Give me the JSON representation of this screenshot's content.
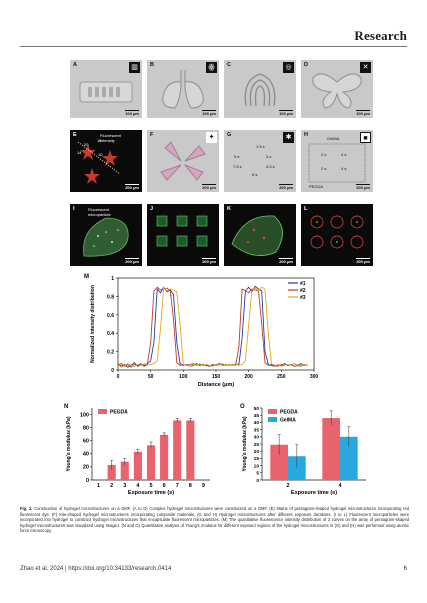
{
  "header": {
    "brand": "Research"
  },
  "panels": {
    "A": {
      "label": "A",
      "scale": "100 μm"
    },
    "B": {
      "label": "B",
      "scale": "100 μm"
    },
    "C": {
      "label": "C",
      "scale": "100 μm"
    },
    "D": {
      "label": "D",
      "scale": "100 μm"
    },
    "E": {
      "label": "E",
      "scale": "200 μm",
      "annotation": "Fluorescent intensity",
      "marks": [
        "20",
        "16",
        "14",
        "10"
      ]
    },
    "F": {
      "label": "F",
      "scale": "200 μm"
    },
    "G": {
      "label": "G",
      "scale": "200 μm",
      "times": [
        "1.5 s",
        "9 s",
        "3 s",
        "7.5 s",
        "4.5 s",
        "6 s"
      ]
    },
    "H": {
      "label": "H",
      "scale": "200 μm",
      "top": "GelMA",
      "bottom": "PEGDA",
      "times": [
        "2 s",
        "4 s",
        "2 s",
        "4 s"
      ]
    },
    "I": {
      "label": "I",
      "scale": "200 μm",
      "annotation": "Fluorescent microparticle"
    },
    "J": {
      "label": "J",
      "scale": "200 μm"
    },
    "K": {
      "label": "K",
      "scale": "200 μm"
    },
    "L": {
      "label": "L",
      "scale": "200 μm"
    }
  },
  "chart_data": [
    {
      "panel": "M",
      "type": "line",
      "xlabel": "Distance (μm)",
      "ylabel": "Normalized intensity distribution",
      "xlim": [
        0,
        300
      ],
      "ylim": [
        0,
        1
      ],
      "xticks": [
        0,
        50,
        100,
        150,
        200,
        250,
        300
      ],
      "yticks": [
        0,
        0.2,
        0.4,
        0.6,
        0.8,
        1
      ],
      "legend_position": "top-right",
      "series": [
        {
          "name": "#1",
          "color": "#1f3e9c",
          "x": [
            0,
            5,
            10,
            15,
            20,
            25,
            30,
            35,
            40,
            45,
            50,
            55,
            60,
            65,
            70,
            75,
            80,
            85,
            90,
            95,
            100,
            105,
            110,
            115,
            120,
            125,
            130,
            135,
            140,
            145,
            150,
            155,
            160,
            165,
            170,
            175,
            180,
            185,
            190,
            195,
            200,
            205,
            210,
            215,
            220,
            225,
            230,
            235,
            240,
            245,
            250,
            255,
            260,
            265,
            270,
            275,
            280,
            285,
            290
          ],
          "y": [
            0.07,
            0.04,
            0.06,
            0.03,
            0.05,
            0.08,
            0.04,
            0.06,
            0.05,
            0.07,
            0.1,
            0.3,
            0.88,
            0.84,
            0.9,
            0.85,
            0.87,
            0.82,
            0.3,
            0.07,
            0.05,
            0.06,
            0.04,
            0.05,
            0.07,
            0.05,
            0.06,
            0.05,
            0.04,
            0.06,
            0.05,
            0.07,
            0.06,
            0.05,
            0.06,
            0.05,
            0.07,
            0.06,
            0.35,
            0.86,
            0.9,
            0.85,
            0.91,
            0.88,
            0.86,
            0.2,
            0.06,
            0.05,
            0.04,
            0.06,
            0.05,
            0.07,
            0.05,
            0.06,
            0.04,
            0.05,
            0.07,
            0.05,
            0.06
          ]
        },
        {
          "name": "#2",
          "color": "#c0392b",
          "x": [
            0,
            5,
            10,
            15,
            20,
            25,
            30,
            35,
            40,
            45,
            50,
            55,
            60,
            65,
            70,
            75,
            80,
            85,
            90,
            95,
            100,
            105,
            110,
            115,
            120,
            125,
            130,
            135,
            140,
            145,
            150,
            155,
            160,
            165,
            170,
            175,
            180,
            185,
            190,
            195,
            200,
            205,
            210,
            215,
            220,
            225,
            230,
            235,
            240,
            245,
            250,
            255,
            260,
            265,
            270,
            275,
            280,
            285,
            290
          ],
          "y": [
            0.05,
            0.07,
            0.04,
            0.06,
            0.03,
            0.06,
            0.05,
            0.07,
            0.04,
            0.06,
            0.3,
            0.86,
            0.9,
            0.87,
            0.88,
            0.89,
            0.86,
            0.55,
            0.08,
            0.05,
            0.06,
            0.05,
            0.06,
            0.07,
            0.05,
            0.06,
            0.05,
            0.06,
            0.04,
            0.05,
            0.06,
            0.07,
            0.05,
            0.06,
            0.05,
            0.06,
            0.05,
            0.25,
            0.88,
            0.86,
            0.84,
            0.88,
            0.87,
            0.86,
            0.5,
            0.08,
            0.05,
            0.06,
            0.05,
            0.04,
            0.06,
            0.05,
            0.06,
            0.05,
            0.07,
            0.05,
            0.04,
            0.06,
            0.05
          ]
        },
        {
          "name": "#3",
          "color": "#e0a81a",
          "x": [
            0,
            5,
            10,
            15,
            20,
            25,
            30,
            35,
            40,
            45,
            50,
            55,
            60,
            65,
            70,
            75,
            80,
            85,
            90,
            95,
            100,
            105,
            110,
            115,
            120,
            125,
            130,
            135,
            140,
            145,
            150,
            155,
            160,
            165,
            170,
            175,
            180,
            185,
            190,
            195,
            200,
            205,
            210,
            215,
            220,
            225,
            230,
            235,
            240,
            245,
            250,
            255,
            260,
            265,
            270,
            275,
            280,
            285,
            290
          ],
          "y": [
            0.06,
            0.03,
            0.05,
            0.07,
            0.05,
            0.04,
            0.06,
            0.05,
            0.07,
            0.05,
            0.06,
            0.07,
            0.1,
            0.45,
            0.9,
            0.86,
            0.88,
            0.87,
            0.85,
            0.5,
            0.06,
            0.05,
            0.04,
            0.06,
            0.05,
            0.07,
            0.05,
            0.06,
            0.05,
            0.04,
            0.06,
            0.05,
            0.07,
            0.05,
            0.06,
            0.05,
            0.07,
            0.05,
            0.06,
            0.1,
            0.5,
            0.87,
            0.89,
            0.86,
            0.9,
            0.88,
            0.4,
            0.07,
            0.05,
            0.06,
            0.04,
            0.05,
            0.06,
            0.05,
            0.07,
            0.04,
            0.06,
            0.05,
            0.06
          ]
        }
      ]
    },
    {
      "panel": "N",
      "type": "bar",
      "xlabel": "Exposure time (s)",
      "ylabel": "Young's modulus (kPa)",
      "ylim": [
        0,
        110
      ],
      "yticks": [
        0,
        20,
        40,
        60,
        80,
        100
      ],
      "legend_position": "top-left",
      "categories": [
        "1",
        "2",
        "3",
        "4",
        "5",
        "6",
        "7",
        "8",
        "9"
      ],
      "series": [
        {
          "name": "PEGDA",
          "color": "#e8636b",
          "positions": [
            "2",
            "3",
            "4",
            "5",
            "6",
            "7",
            "8"
          ],
          "values": [
            23,
            28,
            43,
            53,
            69,
            91,
            91
          ],
          "errors": [
            7,
            5,
            4,
            5,
            3,
            3,
            3
          ]
        }
      ]
    },
    {
      "panel": "O",
      "type": "bar",
      "xlabel": "Exposure time (s)",
      "ylabel": "Young's modulus (kPa)",
      "ylim": [
        0,
        50
      ],
      "yticks": [
        0,
        5,
        10,
        15,
        20,
        25,
        30,
        35,
        40,
        45,
        50
      ],
      "legend_position": "top-left",
      "categories": [
        "2",
        "4"
      ],
      "series": [
        {
          "name": "PEGDA",
          "color": "#e8636b",
          "values": [
            24.5,
            43
          ],
          "errors": [
            7,
            5
          ]
        },
        {
          "name": "GelMA",
          "color": "#29a8e0",
          "values": [
            16.5,
            30
          ],
          "errors": [
            8,
            7
          ]
        }
      ]
    }
  ],
  "chart_labels": {
    "M": "M",
    "N": "N",
    "O": "O"
  },
  "caption": {
    "lead": "Fig. 2.",
    "text": " Construction of hydrogel microstructures on a DMF. (A to D) Complex hydrogel microstructures were constructed on a DMF. (E) Matrix of pentagram-shaped hydrogel microstructures incorporating red fluorescent dye. (F) Kite-shaped hydrogel microstructures incorporating composite materials. (G and H) Hydrogel microstructures after different exposure durations. (I to L) Fluorescent microparticles were incorporated into hydrogel to construct hydrogel microstructures that encapsulate fluorescent microparticles. (M) The quantitative fluorescence intensity distribution of 3 curves on the array of pentagram-shaped hydrogel microstructures was visualized using ImageJ. (N and O) Quantitative analysis of Young's modulus for different exposed regions of the hydrogel microstructures in (G) and (H) was performed using atomic force microscopy."
  },
  "footer": {
    "left": "Zhao et al. 2024 | https://doi.org/10.34133/research.0414",
    "right": "6"
  }
}
